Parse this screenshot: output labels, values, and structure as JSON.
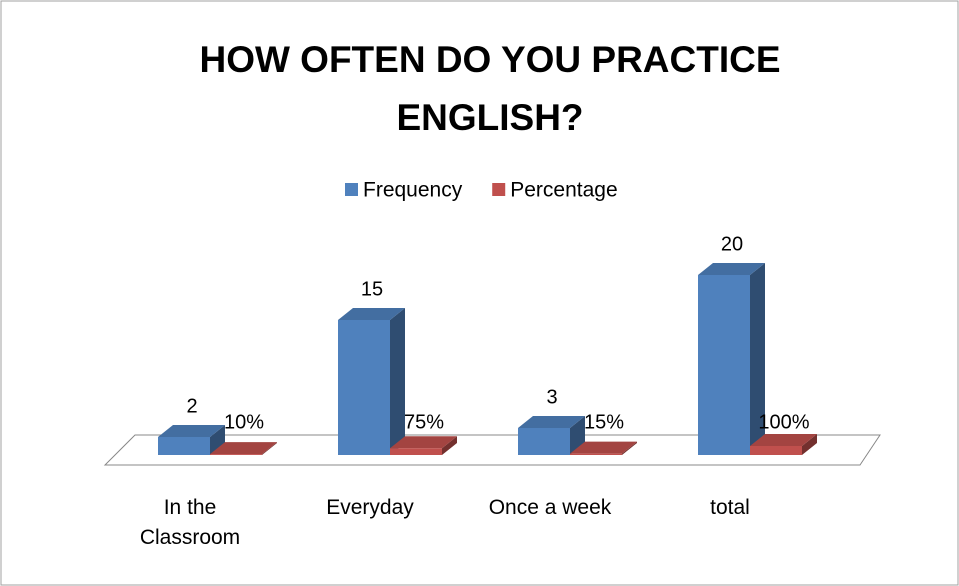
{
  "chart_data": {
    "type": "bar3d",
    "title": "HOW OFTEN DO YOU PRACTICE ENGLISH?",
    "categories": [
      "In the Classroom",
      "Everyday",
      "Once a week",
      "total"
    ],
    "series": [
      {
        "name": "Frequency",
        "color": "#4f81bd",
        "values": [
          2,
          15,
          3,
          20
        ]
      },
      {
        "name": "Percentage",
        "color": "#c0504d",
        "axis": "y2",
        "values": [
          10,
          75,
          15,
          100
        ],
        "value_labels": [
          "10%",
          "75%",
          "15%",
          "100%"
        ]
      }
    ],
    "ylim": [
      0,
      22
    ],
    "y2lim": [
      0,
      2200
    ],
    "legend": "top"
  }
}
